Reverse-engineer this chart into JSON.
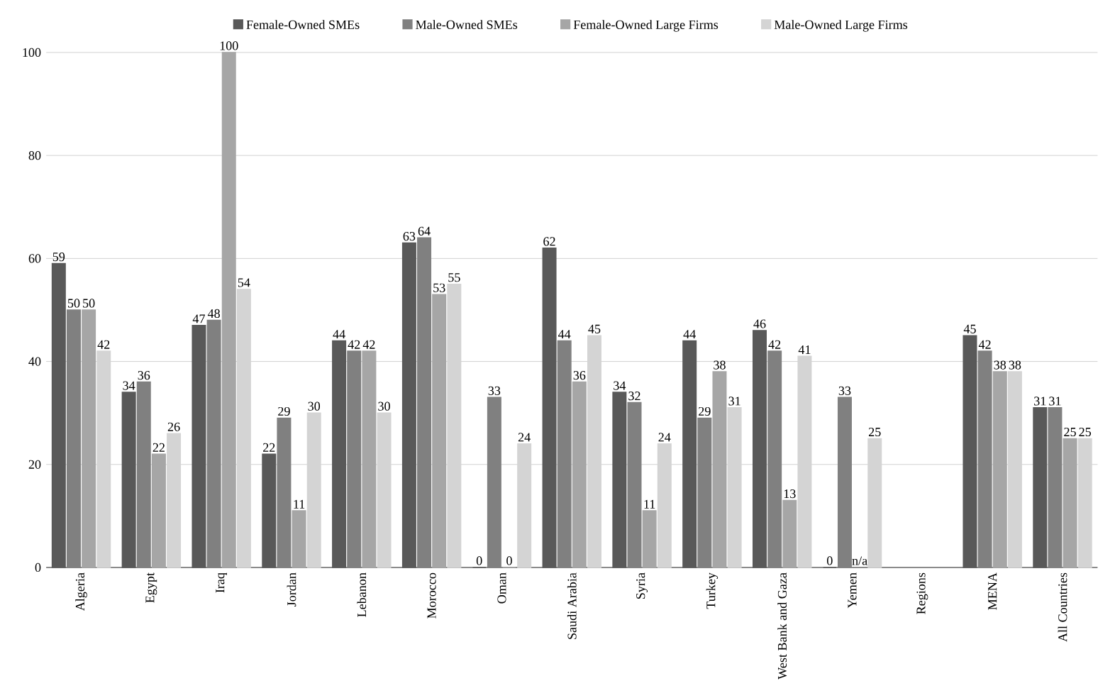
{
  "chart_data": {
    "type": "bar",
    "categories": [
      "Algeria",
      "Egypt",
      "Iraq",
      "Jordan",
      "Lebanon",
      "Morocco",
      "Oman",
      "Saudi Arabia",
      "Syria",
      "Turkey",
      "West  Bank and Gaza",
      "Yemen",
      "Regions",
      "MENA",
      "All Countries"
    ],
    "series": [
      {
        "name": "Female-Owned SMEs",
        "color": "#595959",
        "values": [
          59,
          34,
          47,
          22,
          44,
          63,
          0,
          62,
          34,
          44,
          46,
          0,
          null,
          45,
          31
        ],
        "value_labels": [
          "59",
          "34",
          "47",
          "22",
          "44",
          "63",
          "0",
          "62",
          "34",
          "44",
          "46",
          "0",
          null,
          "45",
          "31"
        ]
      },
      {
        "name": "Male-Owned SMEs",
        "color": "#808080",
        "values": [
          50,
          36,
          48,
          29,
          42,
          64,
          33,
          44,
          32,
          29,
          42,
          33,
          null,
          42,
          31
        ],
        "value_labels": [
          "50",
          "36",
          "48",
          "29",
          "42",
          "64",
          "33",
          "44",
          "32",
          "29",
          "42",
          "33",
          null,
          "42",
          "31"
        ]
      },
      {
        "name": "Female-Owned Large Firms",
        "color": "#a6a6a6",
        "values": [
          50,
          22,
          100,
          11,
          42,
          53,
          0,
          36,
          11,
          38,
          13,
          null,
          null,
          38,
          25
        ],
        "value_labels": [
          "50",
          "22",
          "100",
          "11",
          "42",
          "53",
          "0",
          "36",
          "11",
          "38",
          "13",
          "n/a",
          null,
          "38",
          "25"
        ]
      },
      {
        "name": "Male-Owned Large Firms",
        "color": "#d4d4d4",
        "values": [
          42,
          26,
          54,
          30,
          30,
          55,
          24,
          45,
          24,
          31,
          41,
          25,
          null,
          38,
          25
        ],
        "value_labels": [
          "42",
          "26",
          "54",
          "30",
          "30",
          "55",
          "24",
          "45",
          "24",
          "31",
          "41",
          "25",
          null,
          "38",
          "25"
        ]
      }
    ],
    "ylim": [
      0,
      100
    ],
    "yticks": [
      0,
      20,
      40,
      60,
      80,
      100
    ],
    "grid": "y",
    "legend": "top"
  }
}
